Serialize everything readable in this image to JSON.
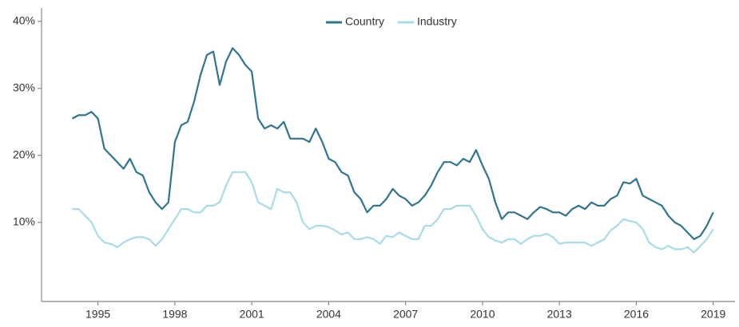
{
  "chart_data": {
    "type": "line",
    "x": [
      1994,
      1994.25,
      1994.5,
      1994.75,
      1995,
      1995.25,
      1995.5,
      1995.75,
      1996,
      1996.25,
      1996.5,
      1996.75,
      1997,
      1997.25,
      1997.5,
      1997.75,
      1998,
      1998.25,
      1998.5,
      1998.75,
      1999,
      1999.25,
      1999.5,
      1999.75,
      2000,
      2000.25,
      2000.5,
      2000.75,
      2001,
      2001.25,
      2001.5,
      2001.75,
      2002,
      2002.25,
      2002.5,
      2002.75,
      2003,
      2003.25,
      2003.5,
      2003.75,
      2004,
      2004.25,
      2004.5,
      2004.75,
      2005,
      2005.25,
      2005.5,
      2005.75,
      2006,
      2006.25,
      2006.5,
      2006.75,
      2007,
      2007.25,
      2007.5,
      2007.75,
      2008,
      2008.25,
      2008.5,
      2008.75,
      2009,
      2009.25,
      2009.5,
      2009.75,
      2010,
      2010.25,
      2010.5,
      2010.75,
      2011,
      2011.25,
      2011.5,
      2011.75,
      2012,
      2012.25,
      2012.5,
      2012.75,
      2013,
      2013.25,
      2013.5,
      2013.75,
      2014,
      2014.25,
      2014.5,
      2014.75,
      2015,
      2015.25,
      2015.5,
      2015.75,
      2016,
      2016.25,
      2016.5,
      2016.75,
      2017,
      2017.25,
      2017.5,
      2017.75,
      2018,
      2018.25,
      2018.5,
      2018.75,
      2019
    ],
    "series": [
      {
        "name": "Country",
        "color": "#2e7591",
        "values": [
          25.5,
          26,
          26,
          26.5,
          25.5,
          21,
          20,
          19,
          18,
          19.5,
          17.5,
          17,
          14.5,
          13,
          12,
          13,
          22,
          24.5,
          25,
          28,
          32,
          35,
          35.5,
          30.5,
          34,
          36,
          35,
          33.5,
          32.5,
          25.5,
          24,
          24.5,
          24,
          25,
          22.5,
          22.5,
          22.5,
          22,
          24,
          22,
          19.5,
          19,
          17.5,
          17,
          14.5,
          13.5,
          11.5,
          12.5,
          12.5,
          13.5,
          15,
          14,
          13.5,
          12.5,
          13,
          14,
          15.5,
          17.5,
          19,
          19,
          18.5,
          19.5,
          19,
          20.8,
          18.5,
          16.5,
          13,
          10.5,
          11.5,
          11.5,
          11,
          10.5,
          11.5,
          12.3,
          12,
          11.5,
          11.5,
          11,
          12,
          12.5,
          12,
          13,
          12.5,
          12.5,
          13.5,
          14,
          16,
          15.8,
          16.5,
          14,
          13.5,
          13,
          12.5,
          11,
          10,
          9.5,
          8.5,
          7.5,
          8,
          9.5,
          11.5
        ]
      },
      {
        "name": "Industry",
        "color": "#a8dbe9",
        "values": [
          12,
          12,
          11,
          10,
          8,
          7,
          6.8,
          6.3,
          7,
          7.5,
          7.8,
          7.8,
          7.5,
          6.5,
          7.5,
          9,
          10.5,
          12,
          12,
          11.5,
          11.5,
          12.5,
          12.5,
          13,
          15.5,
          17.5,
          17.5,
          17.5,
          16,
          13,
          12.5,
          12,
          15,
          14.5,
          14.5,
          13,
          10,
          9,
          9.5,
          9.5,
          9.3,
          8.8,
          8.2,
          8.5,
          7.5,
          7.5,
          7.8,
          7.5,
          6.8,
          8,
          7.8,
          8.5,
          8,
          7.5,
          7.5,
          9.5,
          9.5,
          10.5,
          12,
          12,
          12.5,
          12.5,
          12.5,
          11,
          9,
          7.8,
          7.3,
          7,
          7.5,
          7.5,
          6.8,
          7.5,
          8,
          8,
          8.3,
          7.8,
          6.8,
          7,
          7,
          7,
          7,
          6.5,
          7,
          7.5,
          8.8,
          9.5,
          10.5,
          10.2,
          10,
          9,
          7,
          6.3,
          6,
          6.5,
          6,
          6,
          6.3,
          5.5,
          6.5,
          7.5,
          9
        ]
      }
    ],
    "xlim": [
      1992.8,
      2019.85
    ],
    "xticks": [
      1995,
      1998,
      2001,
      2004,
      2007,
      2010,
      2013,
      2016,
      2019
    ],
    "ylim": [
      -1.8,
      42
    ],
    "yticks": [
      {
        "value": 10,
        "label": "10%"
      },
      {
        "value": 20,
        "label": "20%"
      },
      {
        "value": 30,
        "label": "30%"
      },
      {
        "value": 40,
        "label": "40%"
      }
    ],
    "legend": "top"
  }
}
